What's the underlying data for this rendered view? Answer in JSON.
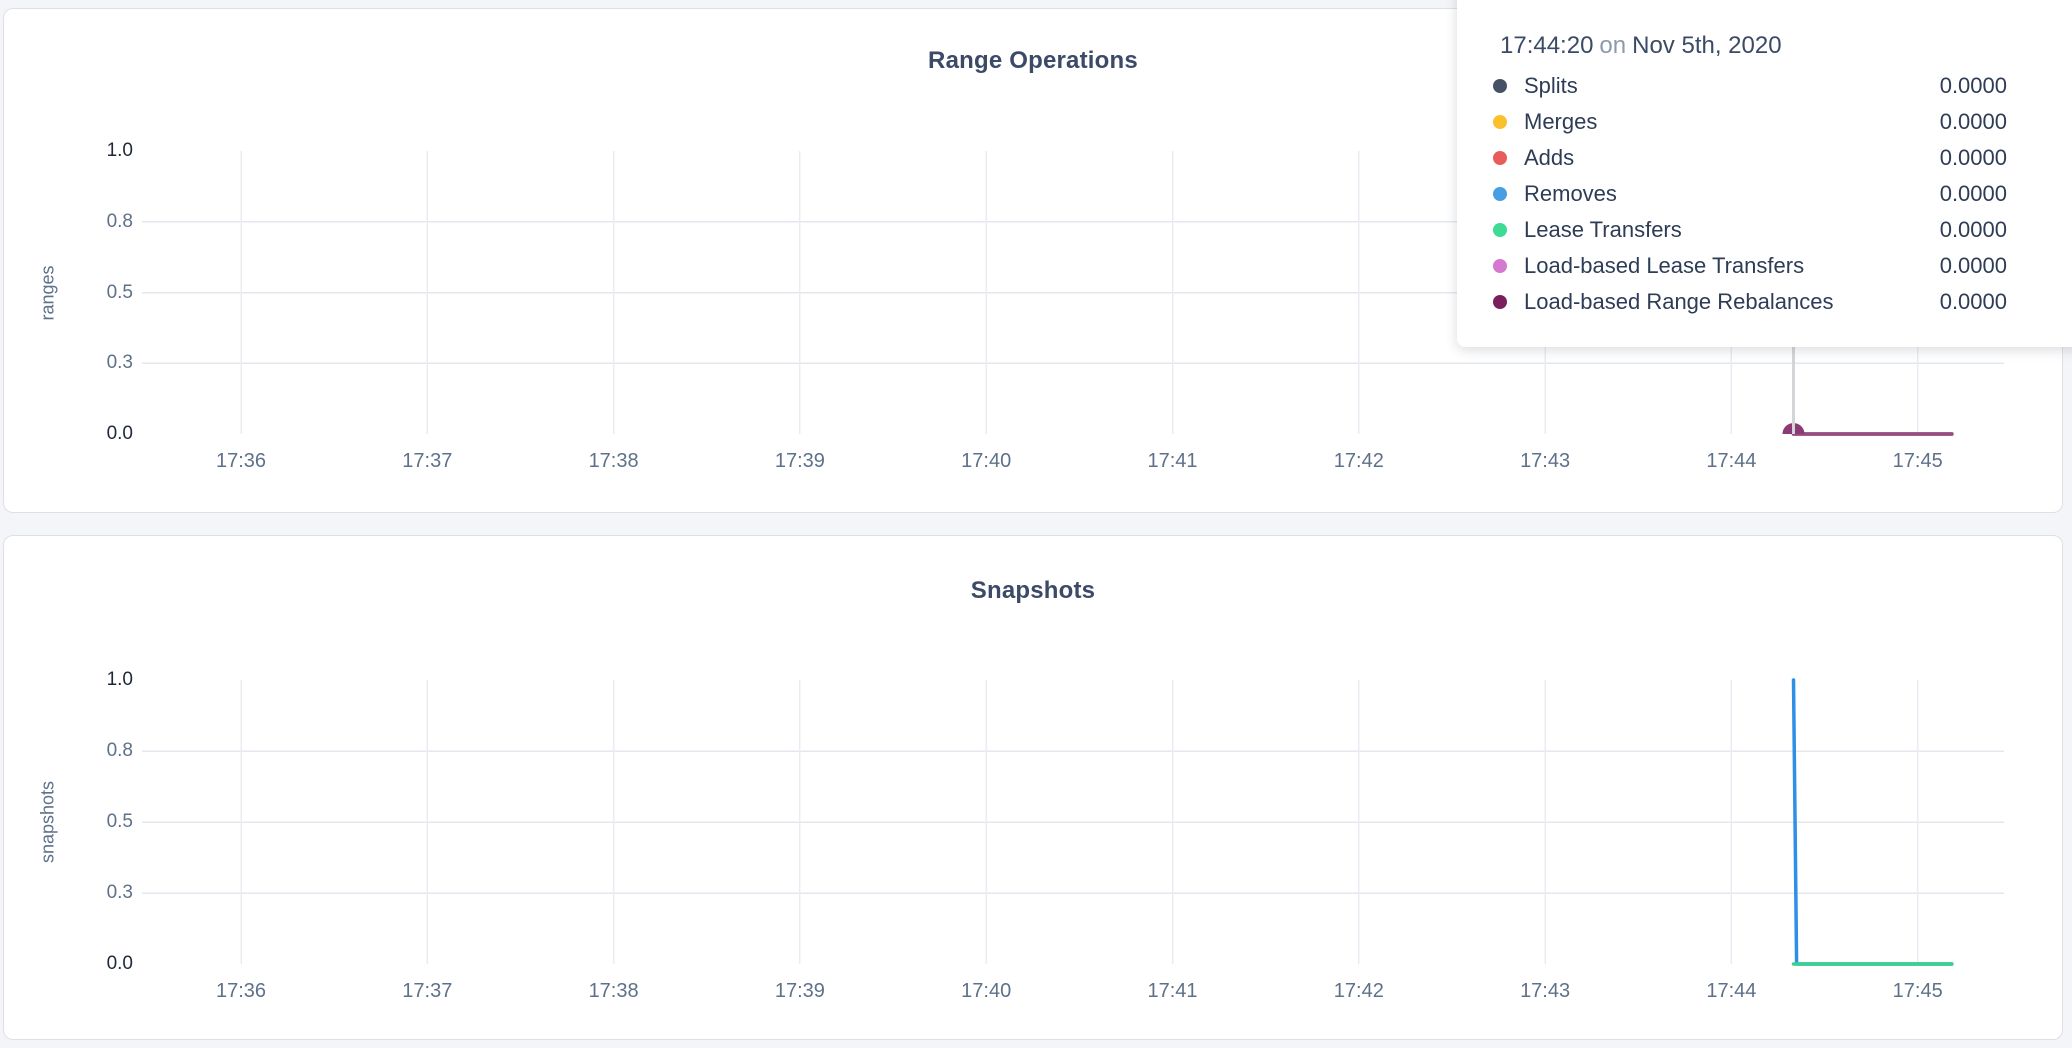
{
  "tooltip": {
    "time": "17:44:20",
    "connector": "on",
    "date": "Nov 5th, 2020",
    "rows": [
      {
        "label": "Splits",
        "value": "0.0000",
        "color": "#475166"
      },
      {
        "label": "Merges",
        "value": "0.0000",
        "color": "#fbc12d"
      },
      {
        "label": "Adds",
        "value": "0.0000",
        "color": "#e95c5c"
      },
      {
        "label": "Removes",
        "value": "0.0000",
        "color": "#459fe2"
      },
      {
        "label": "Lease Transfers",
        "value": "0.0000",
        "color": "#3ddb94"
      },
      {
        "label": "Load-based Lease Transfers",
        "value": "0.0000",
        "color": "#d678d0"
      },
      {
        "label": "Load-based Range Rebalances",
        "value": "0.0000",
        "color": "#791f5e"
      }
    ]
  },
  "chart_data": [
    {
      "type": "line",
      "title": "Range Operations",
      "ylabel": "ranges",
      "ylim": [
        0,
        1
      ],
      "grid": true,
      "ytick_labels": [
        "0.0",
        "0.3",
        "0.5",
        "0.8",
        "1.0"
      ],
      "xtick_labels": [
        "17:36",
        "17:37",
        "17:38",
        "17:39",
        "17:40",
        "17:41",
        "17:42",
        "17:43",
        "17:44",
        "17:45"
      ],
      "series": [
        {
          "name": "Splits",
          "color": "#475166",
          "points": [
            [
              "17:44:20",
              0
            ],
            [
              "17:45:11",
              0
            ]
          ]
        },
        {
          "name": "Merges",
          "color": "#fbc12d",
          "points": [
            [
              "17:44:20",
              0
            ],
            [
              "17:45:11",
              0
            ]
          ]
        },
        {
          "name": "Adds",
          "color": "#e95c5c",
          "points": [
            [
              "17:44:20",
              0
            ],
            [
              "17:45:11",
              0
            ]
          ]
        },
        {
          "name": "Removes",
          "color": "#459fe2",
          "points": [
            [
              "17:44:20",
              0
            ],
            [
              "17:45:11",
              0
            ]
          ]
        },
        {
          "name": "Lease Transfers",
          "color": "#3ddb94",
          "points": [
            [
              "17:44:20",
              0
            ],
            [
              "17:45:11",
              0
            ]
          ]
        },
        {
          "name": "Load-based Lease Transfers",
          "color": "#d678d0",
          "points": [
            [
              "17:44:20",
              0
            ],
            [
              "17:45:11",
              0
            ]
          ]
        },
        {
          "name": "Load-based Range Rebalances",
          "color": "#9a4b80",
          "points": [
            [
              "17:44:20",
              0
            ],
            [
              "17:45:11",
              0
            ]
          ]
        }
      ],
      "hover": {
        "time": "17:44:20",
        "value": 0,
        "dot_color": "#8c3a73",
        "guideline_color": "#d4d5d9"
      }
    },
    {
      "type": "line",
      "title": "Snapshots",
      "ylabel": "snapshots",
      "ylim": [
        0,
        1
      ],
      "grid": true,
      "ytick_labels": [
        "0.0",
        "0.3",
        "0.5",
        "0.8",
        "1.0"
      ],
      "xtick_labels": [
        "17:36",
        "17:37",
        "17:38",
        "17:39",
        "17:40",
        "17:41",
        "17:42",
        "17:43",
        "17:44",
        "17:45"
      ],
      "series": [
        {
          "name": "blue",
          "color": "#2d8fe6",
          "points": [
            [
              "17:44:20",
              1
            ],
            [
              "17:44:21",
              0
            ],
            [
              "17:45:11",
              0
            ]
          ]
        },
        {
          "name": "green",
          "color": "#36d18e",
          "points": [
            [
              "17:44:20",
              0
            ],
            [
              "17:45:11",
              0
            ]
          ]
        }
      ]
    }
  ]
}
